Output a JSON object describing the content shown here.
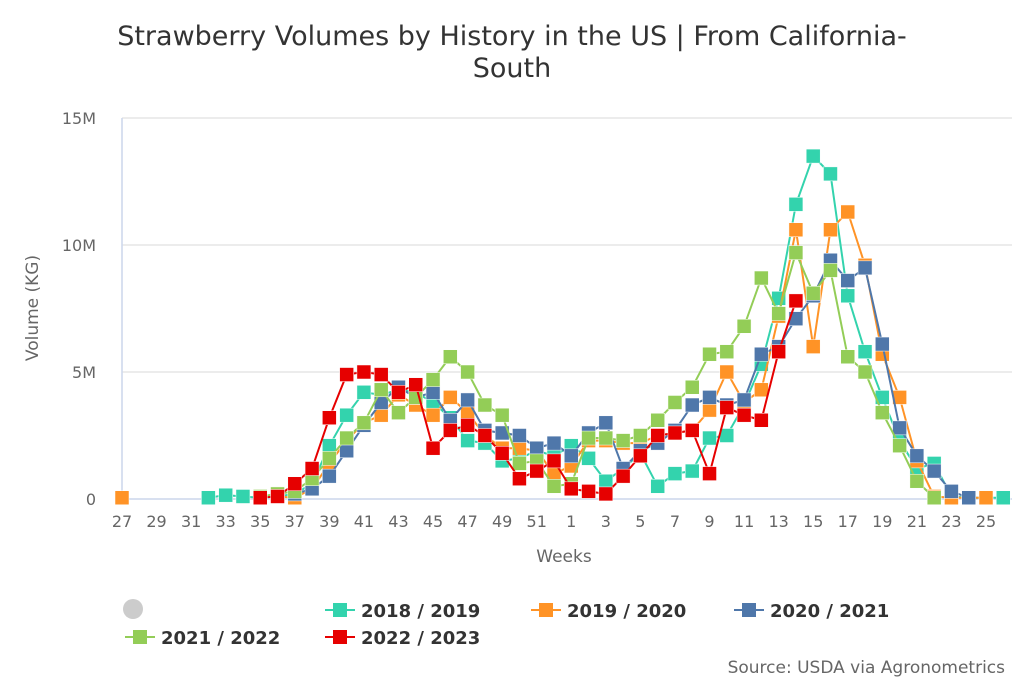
{
  "chart_data": {
    "type": "line",
    "title": "Strawberry Volumes by History in the US | From California-",
    "title_line2": "South",
    "xlabel": "Weeks",
    "ylabel": "Volume (KG)",
    "ylim": [
      0,
      15000000
    ],
    "yticks": [
      {
        "v": 0,
        "label": "0"
      },
      {
        "v": 5000000,
        "label": "5M"
      },
      {
        "v": 10000000,
        "label": "10M"
      },
      {
        "v": 15000000,
        "label": "15M"
      }
    ],
    "grid": true,
    "legend_position": "bottom",
    "source": "Source: USDA via Agronometrics",
    "categories": [
      "27",
      "28",
      "29",
      "30",
      "31",
      "32",
      "33",
      "34",
      "35",
      "36",
      "37",
      "38",
      "39",
      "40",
      "41",
      "42",
      "43",
      "44",
      "45",
      "46",
      "47",
      "48",
      "49",
      "50",
      "51",
      "52",
      "1",
      "2",
      "3",
      "4",
      "5",
      "6",
      "7",
      "8",
      "9",
      "10",
      "11",
      "12",
      "13",
      "14",
      "15",
      "16",
      "17",
      "18",
      "19",
      "20",
      "21",
      "22",
      "23",
      "24",
      "25",
      "26"
    ],
    "xtick_labels": [
      "27",
      "29",
      "31",
      "33",
      "35",
      "37",
      "39",
      "41",
      "43",
      "45",
      "47",
      "49",
      "51",
      "1",
      "3",
      "5",
      "7",
      "9",
      "11",
      "13",
      "15",
      "17",
      "19",
      "21",
      "23",
      "25"
    ],
    "series": [
      {
        "name": "2018 / 2019",
        "color": "#33d3ad",
        "values_millions": [
          null,
          null,
          null,
          null,
          null,
          0.05,
          0.15,
          0.1,
          0.05,
          0.1,
          0.2,
          0.6,
          2.1,
          3.3,
          4.2,
          4.1,
          4.3,
          4.2,
          3.8,
          3.2,
          2.3,
          2.2,
          1.5,
          1.6,
          1.9,
          1.7,
          2.1,
          1.6,
          0.7,
          1.2,
          1.8,
          0.5,
          1.0,
          1.1,
          2.4,
          2.5,
          3.7,
          5.3,
          7.9,
          11.6,
          13.5,
          12.8,
          8.0,
          5.8,
          4.0,
          2.3,
          1.2,
          1.4,
          0.1,
          0.05,
          0.05,
          0.05
        ]
      },
      {
        "name": "2019 / 2020",
        "color": "#ff9326",
        "values_millions": [
          0.05,
          null,
          null,
          null,
          null,
          null,
          null,
          null,
          null,
          0.1,
          0.05,
          0.4,
          1.4,
          2.3,
          3.0,
          3.3,
          4.1,
          3.7,
          3.3,
          4.0,
          3.4,
          2.5,
          2.0,
          2.0,
          1.9,
          1.0,
          1.3,
          2.3,
          2.3,
          2.2,
          2.2,
          2.5,
          2.6,
          2.7,
          3.5,
          5.0,
          3.8,
          4.3,
          7.2,
          10.6,
          6.0,
          10.6,
          11.3,
          9.2,
          5.7,
          4.0,
          1.5,
          0.1,
          0.05,
          0.05,
          0.05,
          null
        ]
      },
      {
        "name": "2020 / 2021",
        "color": "#4f77aa",
        "values_millions": [
          null,
          null,
          null,
          null,
          null,
          null,
          null,
          null,
          null,
          null,
          0.2,
          0.4,
          0.9,
          1.9,
          2.9,
          3.8,
          4.4,
          4.0,
          4.2,
          3.1,
          3.9,
          2.7,
          2.6,
          2.5,
          2.0,
          2.2,
          1.7,
          2.6,
          3.0,
          1.2,
          1.9,
          2.2,
          2.7,
          3.7,
          4.0,
          3.7,
          3.9,
          5.7,
          6.0,
          7.1,
          8.0,
          9.4,
          8.6,
          9.1,
          6.1,
          2.8,
          1.7,
          1.1,
          0.3,
          0.05,
          null,
          null
        ]
      },
      {
        "name": "2021 / 2022",
        "color": "#93cd57",
        "values_millions": [
          null,
          null,
          null,
          null,
          null,
          null,
          null,
          null,
          0.1,
          0.2,
          0.3,
          0.8,
          1.6,
          2.4,
          3.0,
          4.3,
          3.4,
          4.0,
          4.7,
          5.6,
          5.0,
          3.7,
          3.3,
          1.4,
          1.5,
          0.5,
          0.6,
          2.4,
          2.4,
          2.3,
          2.5,
          3.1,
          3.8,
          4.4,
          5.7,
          5.8,
          6.8,
          8.7,
          7.3,
          9.7,
          8.1,
          9.0,
          5.6,
          5.0,
          3.4,
          2.1,
          0.7,
          0.05,
          null,
          null,
          null,
          null
        ]
      },
      {
        "name": "2022 / 2023",
        "color": "#e60000",
        "values_millions": [
          null,
          null,
          null,
          null,
          null,
          null,
          null,
          null,
          0.05,
          0.1,
          0.6,
          1.2,
          3.2,
          4.9,
          5.0,
          4.9,
          4.2,
          4.5,
          2.0,
          2.7,
          2.9,
          2.5,
          1.8,
          0.8,
          1.1,
          1.5,
          0.4,
          0.3,
          0.2,
          0.9,
          1.7,
          2.5,
          2.6,
          2.7,
          1.0,
          3.6,
          3.3,
          3.1,
          5.8,
          7.8,
          null,
          null,
          null,
          null,
          null,
          null,
          null,
          null,
          null,
          null,
          null,
          null
        ]
      }
    ]
  }
}
